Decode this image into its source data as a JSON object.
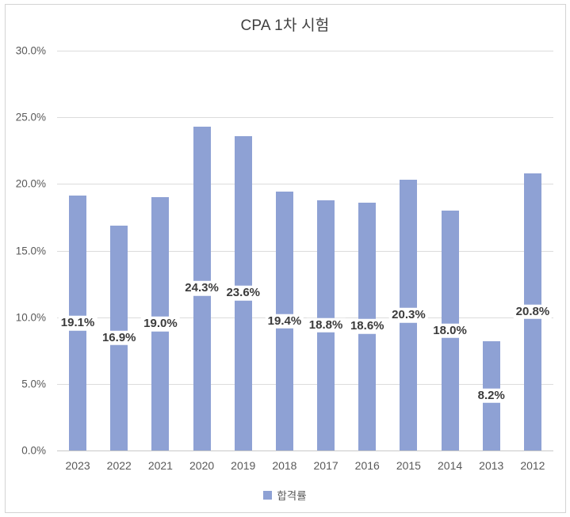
{
  "chart": {
    "title": "CPA 1차 시험",
    "legend_label": "합격률",
    "colors": {
      "bar": "#8ea1d4",
      "gridline": "#dcdcdc",
      "axis_line": "#c9c9c9",
      "title_text": "#404040",
      "axis_text": "#595959",
      "value_label_text": "#3b3b3b",
      "border": "#d4d4d4"
    }
  },
  "chart_data": {
    "type": "bar",
    "title": "CPA 1차 시험",
    "categories": [
      "2023",
      "2022",
      "2021",
      "2020",
      "2019",
      "2018",
      "2017",
      "2016",
      "2015",
      "2014",
      "2013",
      "2012"
    ],
    "series": [
      {
        "name": "합격률",
        "values": [
          19.1,
          16.9,
          19.0,
          24.3,
          23.6,
          19.4,
          18.8,
          18.6,
          20.3,
          18.0,
          8.2,
          20.8
        ]
      }
    ],
    "value_labels": [
      "19.1%",
      "16.9%",
      "19.0%",
      "24.3%",
      "23.6%",
      "19.4%",
      "18.8%",
      "18.6%",
      "20.3%",
      "18.0%",
      "8.2%",
      "20.8%"
    ],
    "xlabel": "",
    "ylabel": "",
    "ylim": [
      0,
      30
    ],
    "ytick_interval": 5,
    "ytick_labels": [
      "0.0%",
      "5.0%",
      "10.0%",
      "15.0%",
      "20.0%",
      "25.0%",
      "30.0%"
    ],
    "grid": true,
    "legend_position": "bottom",
    "value_label_position": "center-of-bar"
  }
}
